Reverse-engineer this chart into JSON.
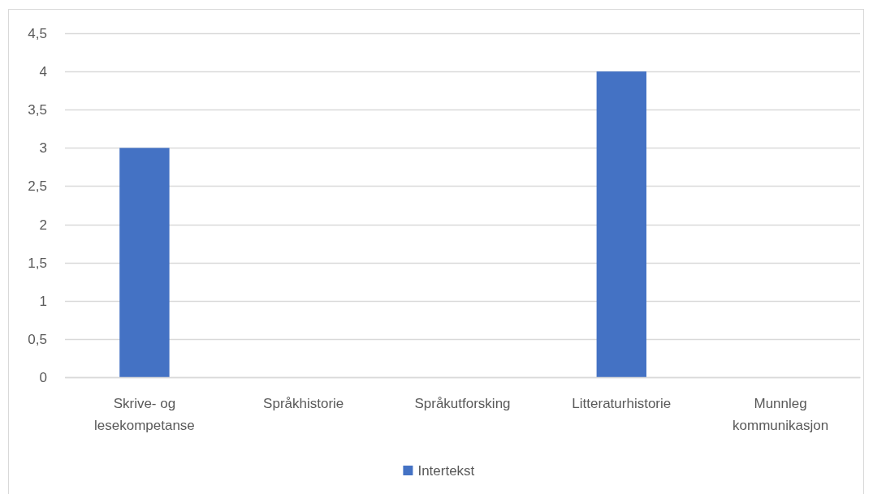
{
  "chart_data": {
    "type": "bar",
    "categories": [
      "Skrive- og lesekompetanse",
      "Språkhistorie",
      "Språkutforsking",
      "Litteraturhistorie",
      "Munnleg kommunikasjon"
    ],
    "series": [
      {
        "name": "Intertekst",
        "color": "#4472c4",
        "values": [
          3,
          0,
          0,
          4,
          0
        ]
      }
    ],
    "ylim": [
      0,
      4.5
    ],
    "yticks": [
      0,
      {
        "value": 0.5,
        "label": "0,5"
      },
      1,
      {
        "value": 1.5,
        "label": "1,5"
      },
      2,
      {
        "value": 2.5,
        "label": "2,5"
      },
      3,
      {
        "value": 3.5,
        "label": "3,5"
      },
      4,
      {
        "value": 4.5,
        "label": "4,5"
      }
    ],
    "grid": "y",
    "legend": "bottom"
  }
}
